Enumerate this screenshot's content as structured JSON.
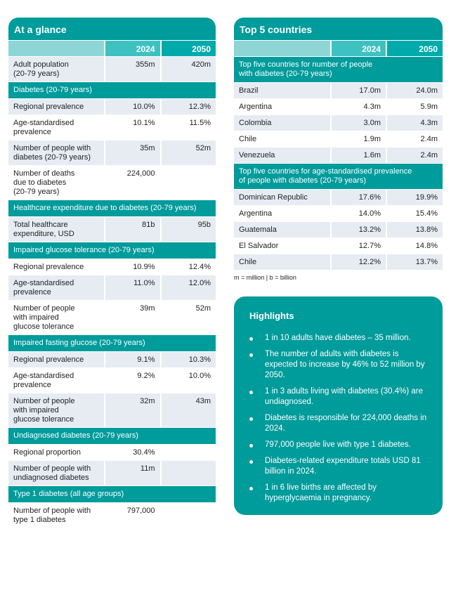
{
  "at_a_glance": {
    "title": "At a glance",
    "columns": [
      "",
      "2024",
      "2050"
    ],
    "blocks": [
      {
        "rows": [
          {
            "label": "Adult  population\n(20-79 years)",
            "v2024": "355m",
            "v2050": "420m"
          }
        ]
      },
      {
        "section": "Diabetes (20-79 years)",
        "rows": [
          {
            "label": "Regional prevalence",
            "v2024": "10.0%",
            "v2050": "12.3%"
          },
          {
            "label": "Age-standardised\nprevalence",
            "v2024": "10.1%",
            "v2050": "11.5%"
          },
          {
            "label": "Number of people with\ndiabetes (20-79 years)",
            "v2024": "35m",
            "v2050": "52m"
          },
          {
            "label": "Number of deaths\ndue to diabetes\n(20-79 years)",
            "v2024": "224,000",
            "v2050": ""
          }
        ]
      },
      {
        "section": "Healthcare expenditure due to diabetes (20-79 years)",
        "rows": [
          {
            "label": "Total healthcare\nexpenditure, USD",
            "v2024": "81b",
            "v2050": "95b"
          }
        ]
      },
      {
        "section": "Impaired glucose tolerance (20-79 years)",
        "rows": [
          {
            "label": "Regional prevalence",
            "v2024": "10.9%",
            "v2050": "12.4%"
          },
          {
            "label": "Age-standardised\nprevalence",
            "v2024": "11.0%",
            "v2050": "12.0%"
          },
          {
            "label": "Number of people\nwith impaired\nglucose tolerance",
            "v2024": "39m",
            "v2050": "52m"
          }
        ]
      },
      {
        "section": "Impaired fasting glucose (20-79 years)",
        "rows": [
          {
            "label": "Regional prevalence",
            "v2024": "9.1%",
            "v2050": "10.3%"
          },
          {
            "label": "Age-standardised\nprevalence",
            "v2024": "9.2%",
            "v2050": "10.0%"
          },
          {
            "label": "Number of people\nwith impaired\nglucose tolerance",
            "v2024": "32m",
            "v2050": "43m"
          }
        ]
      },
      {
        "section": "Undiagnosed diabetes (20-79 years)",
        "rows": [
          {
            "label": "Regional proportion",
            "v2024": "30.4%",
            "v2050": ""
          },
          {
            "label": "Number of people with\nundiagnosed diabetes",
            "v2024": "11m",
            "v2050": ""
          }
        ]
      },
      {
        "section": "Type 1 diabetes (all age groups)",
        "rows": [
          {
            "label": "Number of people with\ntype 1 diabetes",
            "v2024": "797,000",
            "v2050": ""
          }
        ]
      }
    ]
  },
  "top_countries": {
    "title": "Top 5 countries",
    "columns": [
      "",
      "2024",
      "2050"
    ],
    "blocks": [
      {
        "section": "Top five countries for number of people\nwith diabetes (20-79 years)",
        "rows": [
          {
            "label": "Brazil",
            "v2024": "17.0m",
            "v2050": "24.0m"
          },
          {
            "label": "Argentina",
            "v2024": "4.3m",
            "v2050": "5.9m"
          },
          {
            "label": "Colombia",
            "v2024": "3.0m",
            "v2050": "4.3m"
          },
          {
            "label": "Chile",
            "v2024": "1.9m",
            "v2050": "2.4m"
          },
          {
            "label": "Venezuela",
            "v2024": "1.6m",
            "v2050": "2.4m"
          }
        ]
      },
      {
        "section": "Top five countries for age-standardised prevalence\nof people with diabetes (20-79 years)",
        "rows": [
          {
            "label": "Dominican  Republic",
            "v2024": "17.6%",
            "v2050": "19.9%"
          },
          {
            "label": "Argentina",
            "v2024": "14.0%",
            "v2050": "15.4%"
          },
          {
            "label": "Guatemala",
            "v2024": "13.2%",
            "v2050": "13.8%"
          },
          {
            "label": "El Salvador",
            "v2024": "12.7%",
            "v2050": "14.8%"
          },
          {
            "label": "Chile",
            "v2024": "12.2%",
            "v2050": "13.7%"
          }
        ]
      }
    ]
  },
  "footnote": "m = million |  b = billion",
  "highlights": {
    "title": "Highlights",
    "items": [
      "1 in 10 adults have diabetes – 35 million.",
      "The number of adults with diabetes is expected to increase by 46% to 52 million by 2050.",
      "1 in 3 adults living with diabetes (30.4%) are undiagnosed.",
      "Diabetes is responsible for 224,000 deaths in 2024.",
      "797,000 people live with type 1 diabetes.",
      "Diabetes-related expenditure totals USD 81 billion in 2024.",
      "1 in 6 live births are affected by hyperglycaemia in pregnancy."
    ]
  },
  "colors": {
    "teal": "#009b9b",
    "header_2024": "#3ec1c1",
    "header_2050": "#00aaaa",
    "header_blank": "#8ed6d6",
    "row_shade": "#e6ecf2"
  }
}
